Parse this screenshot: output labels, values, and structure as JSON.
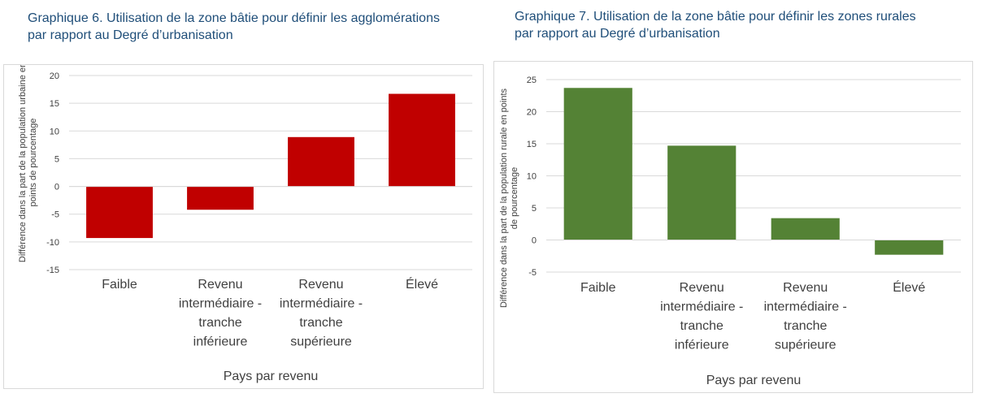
{
  "chart_data": [
    {
      "type": "bar",
      "title": "Graphique 6. Utilisation de la zone bâtie pour définir les agglomérations\n par rapport au Degré d’urbanisation",
      "categories": [
        [
          "Faible"
        ],
        [
          "Revenu",
          "intermédiaire -",
          "tranche",
          "inférieure"
        ],
        [
          "Revenu",
          "intermédiaire -",
          "tranche",
          "supérieure"
        ],
        [
          "Élevé"
        ]
      ],
      "values": [
        -9.3,
        -4.2,
        8.9,
        16.7
      ],
      "xlabel": "Pays par revenu",
      "ylabel": [
        "Différence dans la part de la population urbaine en",
        "points de pourcentage"
      ],
      "ylim": [
        -15,
        20
      ],
      "ytick_step": 5,
      "grid": true,
      "bar_color": "#c00000"
    },
    {
      "type": "bar",
      "title": "Graphique 7. Utilisation de la zone bâtie pour définir les zones rurales\npar rapport au Degré d’urbanisation",
      "categories": [
        [
          "Faible"
        ],
        [
          "Revenu",
          "intermédiaire -",
          "tranche",
          "inférieure"
        ],
        [
          "Revenu",
          "intermédiaire -",
          "tranche",
          "supérieure"
        ],
        [
          "Élevé"
        ]
      ],
      "values": [
        23.7,
        14.7,
        3.4,
        -2.3
      ],
      "xlabel": "Pays par revenu",
      "ylabel": [
        "Différence dans la part de la population rurale en points",
        "de pourcentage"
      ],
      "ylim": [
        -5,
        25
      ],
      "ytick_step": 5,
      "grid": true,
      "bar_color": "#548235"
    }
  ]
}
